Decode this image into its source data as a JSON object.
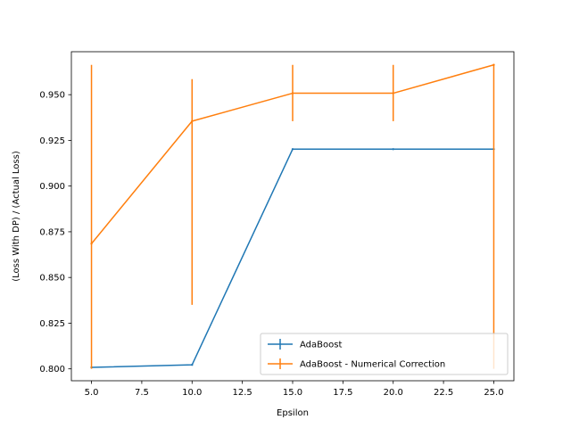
{
  "chart_data": {
    "type": "line",
    "title": "",
    "xlabel": "Epsilon",
    "ylabel": "(Loss With DP) / (Actual Loss)",
    "xlim": [
      4.0,
      26.0
    ],
    "ylim": [
      0.7935,
      0.9735
    ],
    "xticks": [
      5.0,
      7.5,
      10.0,
      12.5,
      15.0,
      17.5,
      20.0,
      22.5,
      25.0
    ],
    "xtick_labels": [
      "5.0",
      "7.5",
      "10.0",
      "12.5",
      "15.0",
      "17.5",
      "20.0",
      "22.5",
      "25.0"
    ],
    "yticks": [
      0.8,
      0.825,
      0.85,
      0.875,
      0.9,
      0.925,
      0.95
    ],
    "ytick_labels": [
      "0.800",
      "0.825",
      "0.850",
      "0.875",
      "0.900",
      "0.925",
      "0.950"
    ],
    "grid": false,
    "legend_position": "bottom-right",
    "series": [
      {
        "name": "AdaBoost",
        "color": "#1f77b4",
        "x": [
          5,
          10,
          15,
          20,
          25
        ],
        "y": [
          0.8008,
          0.8022,
          0.9202,
          0.9202,
          0.9202
        ],
        "err_low": [
          0.8008,
          0.8022,
          0.9202,
          0.9202,
          0.9202
        ],
        "err_high": [
          0.8008,
          0.8022,
          0.9202,
          0.9202,
          0.9202
        ]
      },
      {
        "name": "AdaBoost - Numerical Correction",
        "color": "#ff7f0e",
        "x": [
          5,
          10,
          15,
          20,
          25
        ],
        "y": [
          0.8685,
          0.9355,
          0.9508,
          0.9508,
          0.9663
        ],
        "err_low": [
          0.8,
          0.835,
          0.9355,
          0.9355,
          0.8
        ],
        "err_high": [
          0.9663,
          0.9585,
          0.9663,
          0.9663,
          0.9663
        ]
      }
    ]
  }
}
